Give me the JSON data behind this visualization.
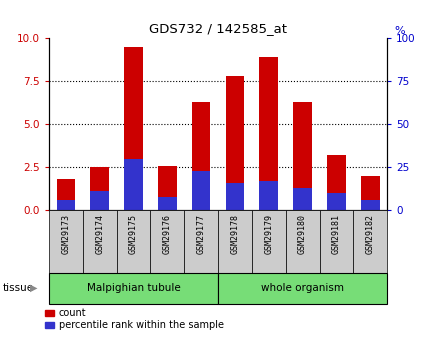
{
  "title": "GDS732 / 142585_at",
  "samples": [
    "GSM29173",
    "GSM29174",
    "GSM29175",
    "GSM29176",
    "GSM29177",
    "GSM29178",
    "GSM29179",
    "GSM29180",
    "GSM29181",
    "GSM29182"
  ],
  "count_values": [
    1.8,
    2.5,
    9.5,
    2.6,
    6.3,
    7.8,
    8.9,
    6.3,
    3.2,
    2.0
  ],
  "percentile_values": [
    6,
    11,
    30,
    8,
    23,
    16,
    17,
    13,
    10,
    6
  ],
  "group1_label": "Malpighian tubule",
  "group2_label": "whole organism",
  "ylim_left": [
    0,
    10
  ],
  "ylim_right": [
    0,
    100
  ],
  "yticks_left": [
    0,
    2.5,
    5.0,
    7.5,
    10
  ],
  "yticks_right": [
    0,
    25,
    50,
    75,
    100
  ],
  "bar_color_red": "#CC0000",
  "bar_color_blue": "#3333CC",
  "bar_width": 0.55,
  "plot_bg": "#ffffff",
  "grid_color": "black",
  "tick_color_left": "#CC0000",
  "tick_color_right": "#0000CC",
  "xlabel_bg": "#cccccc",
  "group_bg": "#77DD77",
  "legend_count_label": "count",
  "legend_pct_label": "percentile rank within the sample"
}
